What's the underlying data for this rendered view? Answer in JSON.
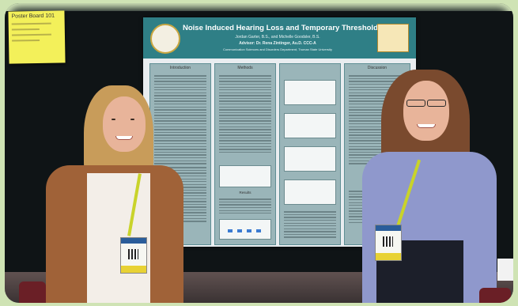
{
  "sticky_note": {
    "title": "Poster Board 101"
  },
  "poster": {
    "title": "Noise Induced Hearing Loss and Temporary Threshold Shift",
    "authors": "Jordan Garter, B.S., and Michelle Goodsler, B.S.",
    "advisor": "Advisor: Dr. Rena Zintinger, Au.D. CCC-A",
    "department": "Communication Sciences and Disorders Department, Truman State University",
    "sections": {
      "introduction": "Introduction",
      "methods": "Methods",
      "results": "Results",
      "discussion": "Discussion",
      "conclusion": "Conclusion"
    }
  },
  "colors": {
    "poster_header": "#2f7f86",
    "poster_panel": "#9ab5b9",
    "sticky_note": "#f3f05a",
    "background_border": "#cfe3b4"
  }
}
